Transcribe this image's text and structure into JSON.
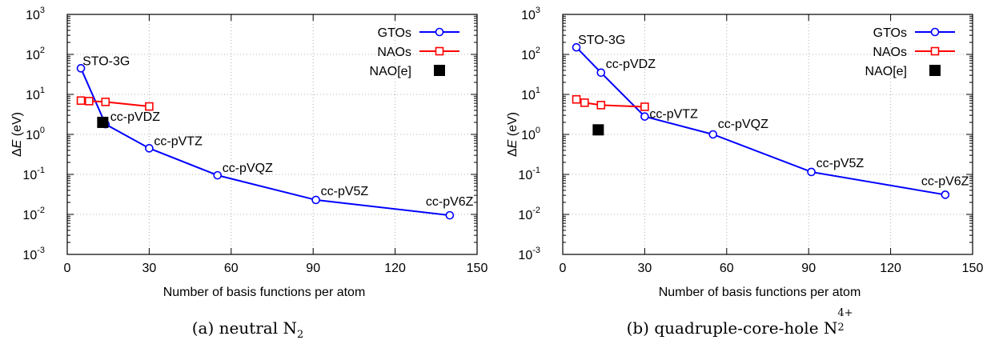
{
  "chart_data": [
    {
      "type": "line",
      "xlabel": "Number of basis functions per atom",
      "ylabel": "ΔE (eV)",
      "ylabel_parts": {
        "delta": "Δ",
        "var": "E",
        "unit": " (eV)"
      },
      "xlim": [
        0,
        150
      ],
      "ylim": [
        0.001,
        1000
      ],
      "yscale": "log",
      "xticks": [
        0,
        30,
        60,
        90,
        120,
        150
      ],
      "xtick_labels": [
        "0",
        "30",
        "60",
        "90",
        "120",
        "150"
      ],
      "yticks": [
        0.001,
        0.01,
        0.1,
        1,
        10,
        100,
        1000
      ],
      "ytick_labels": [
        {
          "base": "10",
          "exp": "-3"
        },
        {
          "base": "10",
          "exp": "-2"
        },
        {
          "base": "10",
          "exp": "-1"
        },
        {
          "base": "10",
          "exp": "0"
        },
        {
          "base": "10",
          "exp": "1"
        },
        {
          "base": "10",
          "exp": "2"
        },
        {
          "base": "10",
          "exp": "3"
        }
      ],
      "grid": true,
      "legend_position": "top-right",
      "series": [
        {
          "name": "GTOs",
          "color": "#0000ff",
          "marker": "circle",
          "x": [
            5,
            14,
            30,
            55,
            91,
            140
          ],
          "y": [
            45,
            1.8,
            0.45,
            0.095,
            0.023,
            0.0095
          ]
        },
        {
          "name": "NAOs",
          "color": "#ff0000",
          "marker": "square",
          "x": [
            5,
            8,
            14,
            30
          ],
          "y": [
            7,
            6.8,
            6.5,
            5
          ]
        },
        {
          "name": "NAO[e]",
          "color": "#000000",
          "marker": "filled-square",
          "x": [
            13
          ],
          "y": [
            2
          ]
        }
      ],
      "annotations": [
        {
          "text": "STO-3G",
          "x": 5,
          "y": 45
        },
        {
          "text": "cc-pVDZ",
          "x": 14,
          "y": 1.8
        },
        {
          "text": "cc-pVTZ",
          "x": 30,
          "y": 0.45
        },
        {
          "text": "cc-pVQZ",
          "x": 55,
          "y": 0.095
        },
        {
          "text": "cc-pV5Z",
          "x": 91,
          "y": 0.023
        },
        {
          "text": "cc-pV6Z",
          "x": 140,
          "y": 0.0095
        }
      ]
    },
    {
      "type": "line",
      "xlabel": "Number of basis functions per atom",
      "ylabel": "ΔE (eV)",
      "ylabel_parts": {
        "delta": "Δ",
        "var": "E",
        "unit": " (eV)"
      },
      "xlim": [
        0,
        150
      ],
      "ylim": [
        0.001,
        1000
      ],
      "yscale": "log",
      "xticks": [
        0,
        30,
        60,
        90,
        120,
        150
      ],
      "xtick_labels": [
        "0",
        "30",
        "60",
        "90",
        "120",
        "150"
      ],
      "yticks": [
        0.001,
        0.01,
        0.1,
        1,
        10,
        100,
        1000
      ],
      "ytick_labels": [
        {
          "base": "10",
          "exp": "-3"
        },
        {
          "base": "10",
          "exp": "-2"
        },
        {
          "base": "10",
          "exp": "-1"
        },
        {
          "base": "10",
          "exp": "0"
        },
        {
          "base": "10",
          "exp": "1"
        },
        {
          "base": "10",
          "exp": "2"
        },
        {
          "base": "10",
          "exp": "3"
        }
      ],
      "grid": true,
      "legend_position": "top-right",
      "series": [
        {
          "name": "GTOs",
          "color": "#0000ff",
          "marker": "circle",
          "x": [
            5,
            14,
            30,
            55,
            91,
            140
          ],
          "y": [
            150,
            35,
            2.8,
            1.0,
            0.115,
            0.031
          ]
        },
        {
          "name": "NAOs",
          "color": "#ff0000",
          "marker": "square",
          "x": [
            5,
            8,
            14,
            30
          ],
          "y": [
            7.5,
            6.2,
            5.4,
            4.9
          ]
        },
        {
          "name": "NAO[e]",
          "color": "#000000",
          "marker": "filled-square",
          "x": [
            13
          ],
          "y": [
            1.3
          ]
        }
      ],
      "annotations": [
        {
          "text": "STO-3G",
          "x": 5,
          "y": 150
        },
        {
          "text": "cc-pVDZ",
          "x": 14,
          "y": 35
        },
        {
          "text": "cc-pVTZ",
          "x": 30,
          "y": 2.8
        },
        {
          "text": "cc-pVQZ",
          "x": 55,
          "y": 1.0
        },
        {
          "text": "cc-pV5Z",
          "x": 91,
          "y": 0.115
        },
        {
          "text": "cc-pV6Z",
          "x": 140,
          "y": 0.031
        }
      ]
    }
  ],
  "captions": [
    {
      "text": "(a) neutral N",
      "sub": "2",
      "sup": ""
    },
    {
      "text": "(b) quadruple-core-hole N",
      "sub": "2",
      "sup": "4+"
    }
  ]
}
